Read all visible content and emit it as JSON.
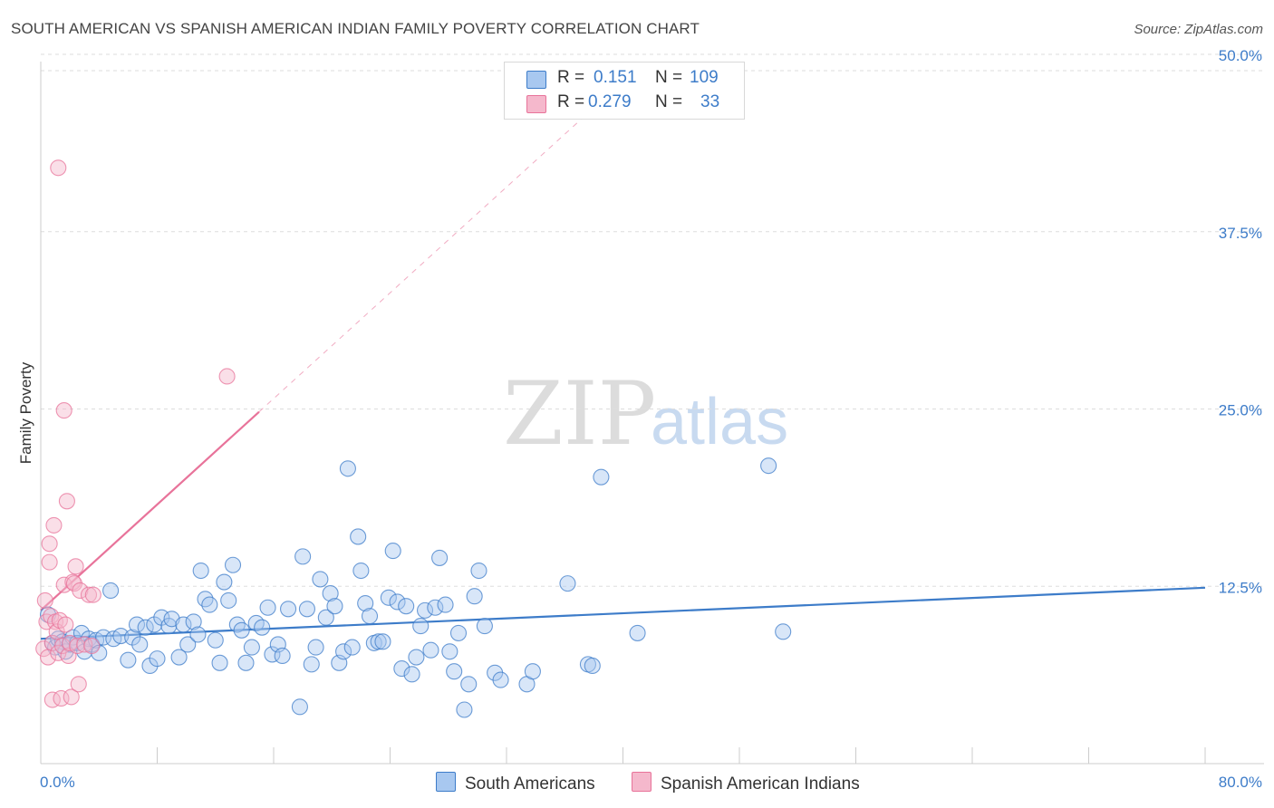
{
  "title": "SOUTH AMERICAN VS SPANISH AMERICAN INDIAN FAMILY POVERTY CORRELATION CHART",
  "source": "Source: ZipAtlas.com",
  "watermark": {
    "zip": "ZIP",
    "atlas": "atlas"
  },
  "legend": {
    "r_label": "R =",
    "n_label": "N =",
    "rows": [
      {
        "r": "0.151",
        "n": "109",
        "color": "#a8c8f0"
      },
      {
        "r": "0.279",
        "n": "33",
        "color": "#f5b8cc"
      }
    ]
  },
  "bottom_legend": {
    "south": "South Americans",
    "spanish": "Spanish American Indians"
  },
  "chart_data": {
    "type": "scatter",
    "title": "SOUTH AMERICAN VS SPANISH AMERICAN INDIAN FAMILY POVERTY CORRELATION CHART",
    "xlabel": "",
    "ylabel": "Family Poverty",
    "xlim": [
      0,
      80
    ],
    "ylim": [
      0,
      50
    ],
    "x_tick_labels": [
      "0.0%",
      "80.0%"
    ],
    "y_ticks": [
      12.5,
      25.0,
      37.5,
      50.0
    ],
    "y_tick_labels": [
      "12.5%",
      "25.0%",
      "37.5%",
      "50.0%"
    ],
    "grid": true,
    "series": [
      {
        "name": "South Americans",
        "color": "#3d7cc9",
        "fill": "#a8c8f0",
        "r": 0.151,
        "n": 109,
        "trend": {
          "x": [
            0,
            80
          ],
          "y": [
            8.8,
            12.4
          ]
        },
        "points": [
          [
            0.5,
            10.5
          ],
          [
            0.8,
            8.5
          ],
          [
            1.0,
            8.2
          ],
          [
            1.2,
            8.8
          ],
          [
            1.5,
            8.6
          ],
          [
            1.7,
            7.9
          ],
          [
            2.0,
            8.4
          ],
          [
            2.2,
            8.9
          ],
          [
            2.5,
            8.5
          ],
          [
            2.8,
            9.2
          ],
          [
            3.0,
            7.9
          ],
          [
            3.3,
            8.8
          ],
          [
            3.5,
            8.4
          ],
          [
            3.8,
            8.7
          ],
          [
            4.0,
            7.8
          ],
          [
            4.3,
            8.9
          ],
          [
            4.8,
            12.2
          ],
          [
            5.0,
            8.8
          ],
          [
            5.5,
            9.0
          ],
          [
            6.0,
            7.3
          ],
          [
            6.3,
            8.9
          ],
          [
            6.6,
            9.8
          ],
          [
            6.8,
            8.4
          ],
          [
            7.2,
            9.6
          ],
          [
            7.5,
            6.9
          ],
          [
            7.8,
            9.8
          ],
          [
            8.0,
            7.4
          ],
          [
            8.3,
            10.3
          ],
          [
            8.8,
            9.7
          ],
          [
            9.0,
            10.2
          ],
          [
            9.5,
            7.5
          ],
          [
            9.8,
            9.8
          ],
          [
            10.1,
            8.4
          ],
          [
            10.5,
            10.0
          ],
          [
            10.8,
            9.1
          ],
          [
            11.0,
            13.6
          ],
          [
            11.3,
            11.6
          ],
          [
            11.6,
            11.2
          ],
          [
            12.0,
            8.7
          ],
          [
            12.3,
            7.1
          ],
          [
            12.6,
            12.8
          ],
          [
            12.9,
            11.5
          ],
          [
            13.2,
            14.0
          ],
          [
            13.5,
            9.8
          ],
          [
            13.8,
            9.4
          ],
          [
            14.1,
            7.1
          ],
          [
            14.5,
            8.2
          ],
          [
            14.8,
            9.9
          ],
          [
            15.2,
            9.6
          ],
          [
            15.6,
            11.0
          ],
          [
            15.9,
            7.7
          ],
          [
            16.3,
            8.4
          ],
          [
            16.6,
            7.6
          ],
          [
            17.0,
            10.9
          ],
          [
            17.8,
            4.0
          ],
          [
            18.0,
            14.6
          ],
          [
            18.3,
            10.9
          ],
          [
            18.6,
            7.0
          ],
          [
            18.9,
            8.2
          ],
          [
            19.2,
            13.0
          ],
          [
            19.6,
            10.3
          ],
          [
            19.9,
            12.0
          ],
          [
            20.2,
            11.1
          ],
          [
            20.5,
            7.1
          ],
          [
            20.8,
            7.9
          ],
          [
            21.1,
            20.8
          ],
          [
            21.4,
            8.2
          ],
          [
            21.8,
            16.0
          ],
          [
            22.0,
            13.6
          ],
          [
            22.3,
            11.3
          ],
          [
            22.6,
            10.4
          ],
          [
            22.9,
            8.5
          ],
          [
            23.2,
            8.6
          ],
          [
            23.5,
            8.6
          ],
          [
            23.9,
            11.7
          ],
          [
            24.2,
            15.0
          ],
          [
            24.5,
            11.4
          ],
          [
            24.8,
            6.7
          ],
          [
            25.1,
            11.1
          ],
          [
            25.5,
            6.3
          ],
          [
            25.8,
            7.5
          ],
          [
            26.1,
            9.7
          ],
          [
            26.4,
            10.8
          ],
          [
            26.8,
            8.0
          ],
          [
            27.1,
            11.0
          ],
          [
            27.4,
            14.5
          ],
          [
            27.8,
            11.2
          ],
          [
            28.1,
            7.9
          ],
          [
            28.4,
            6.5
          ],
          [
            28.7,
            9.2
          ],
          [
            29.1,
            3.8
          ],
          [
            29.4,
            5.6
          ],
          [
            29.8,
            11.8
          ],
          [
            30.1,
            13.6
          ],
          [
            30.5,
            9.7
          ],
          [
            31.2,
            6.4
          ],
          [
            31.6,
            5.9
          ],
          [
            33.4,
            5.6
          ],
          [
            33.8,
            6.5
          ],
          [
            36.2,
            12.7
          ],
          [
            37.6,
            7.0
          ],
          [
            37.9,
            6.9
          ],
          [
            41.0,
            9.2
          ],
          [
            38.5,
            20.2
          ],
          [
            51.0,
            9.3
          ],
          [
            50.0,
            21.0
          ]
        ]
      },
      {
        "name": "Spanish American Indians",
        "color": "#e8739a",
        "fill": "#f5b8cc",
        "r": 0.279,
        "n": 33,
        "trend": {
          "x": [
            0,
            15
          ],
          "y": [
            10.8,
            24.8
          ]
        },
        "trend_extension": {
          "x": [
            15,
            40
          ],
          "y": [
            24.8,
            48.1
          ]
        },
        "points": [
          [
            0.2,
            8.1
          ],
          [
            0.3,
            11.5
          ],
          [
            0.4,
            10.0
          ],
          [
            0.5,
            7.5
          ],
          [
            0.6,
            15.5
          ],
          [
            0.6,
            14.2
          ],
          [
            0.7,
            10.4
          ],
          [
            0.8,
            4.5
          ],
          [
            0.8,
            8.5
          ],
          [
            0.9,
            16.8
          ],
          [
            1.0,
            10.0
          ],
          [
            1.1,
            9.3
          ],
          [
            1.2,
            7.8
          ],
          [
            1.3,
            10.1
          ],
          [
            1.4,
            4.6
          ],
          [
            1.5,
            8.3
          ],
          [
            1.6,
            12.6
          ],
          [
            1.7,
            9.8
          ],
          [
            1.8,
            18.5
          ],
          [
            1.9,
            7.6
          ],
          [
            2.0,
            8.5
          ],
          [
            2.1,
            4.7
          ],
          [
            2.2,
            12.8
          ],
          [
            2.3,
            12.7
          ],
          [
            2.4,
            13.9
          ],
          [
            2.5,
            8.3
          ],
          [
            2.6,
            5.6
          ],
          [
            2.7,
            12.2
          ],
          [
            3.0,
            8.4
          ],
          [
            3.5,
            8.3
          ],
          [
            3.3,
            11.9
          ],
          [
            3.6,
            11.9
          ],
          [
            1.2,
            42.0
          ],
          [
            12.8,
            27.3
          ],
          [
            1.6,
            24.9
          ]
        ]
      }
    ]
  }
}
